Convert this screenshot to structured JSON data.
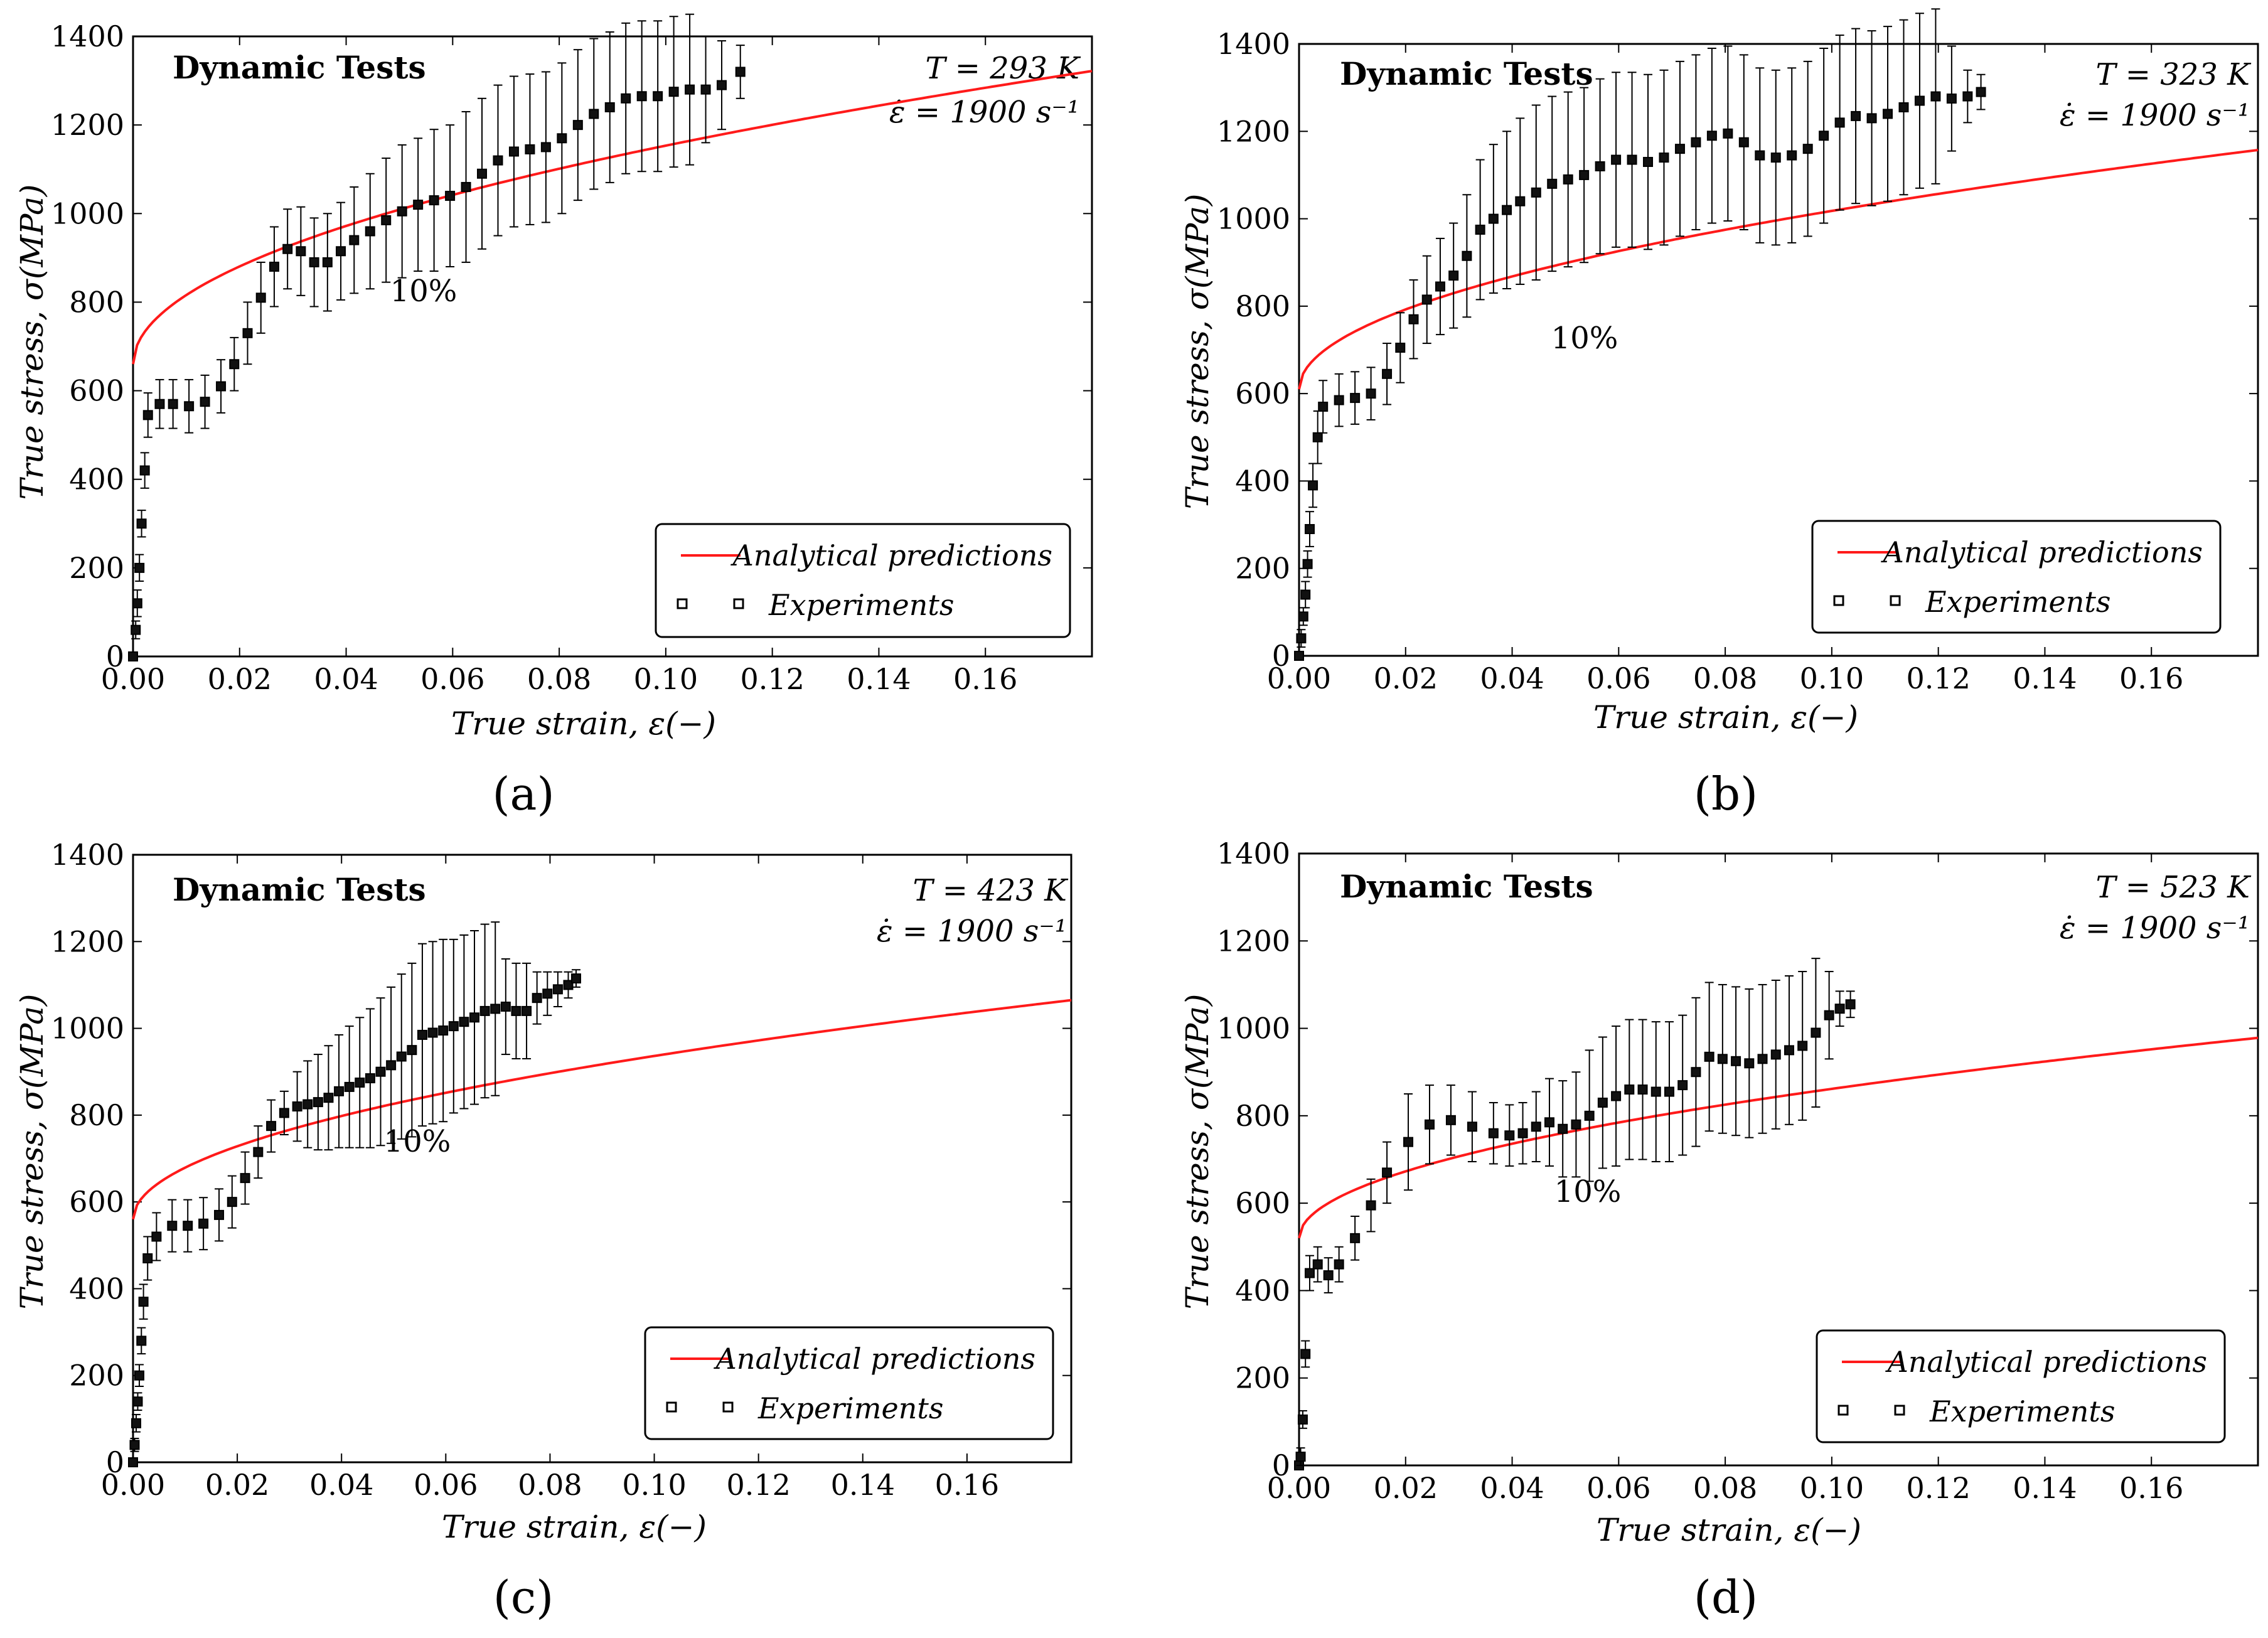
{
  "colors": {
    "prediction": "#ff1a1a",
    "experiment": "#000000",
    "axis": "#000000",
    "background": "#ffffff"
  },
  "chart_data": [
    {
      "panel": "a",
      "caption": "(a)",
      "type": "line+errorbar",
      "title": "Dynamic Tests",
      "temperature_label": "T = 293 K",
      "strain_rate_label": "ε̇ = 1900 s⁻¹",
      "annotation": "10%",
      "xlabel": "True strain, ε(−)",
      "ylabel": "True stress, σ(MPa)",
      "xlim": [
        0,
        0.18
      ],
      "ylim": [
        0,
        1400
      ],
      "xticks": [
        "0.00",
        "0.02",
        "0.04",
        "0.06",
        "0.08",
        "0.10",
        "0.12",
        "0.14",
        "0.16"
      ],
      "yticks": [
        "0",
        "200",
        "400",
        "600",
        "800",
        "1000",
        "1200",
        "1400"
      ],
      "legend": [
        "Analytical predictions",
        "Experiments"
      ],
      "legend_position": "lower-right",
      "prediction": {
        "y0": 660,
        "A": 1560,
        "n": 0.5
      },
      "experiments": {
        "x": [
          0,
          0.0005,
          0.0008,
          0.0012,
          0.0016,
          0.0022,
          0.0028,
          0.005,
          0.0075,
          0.0105,
          0.0135,
          0.0165,
          0.019,
          0.0215,
          0.024,
          0.0265,
          0.029,
          0.0315,
          0.034,
          0.0365,
          0.039,
          0.0415,
          0.0445,
          0.0475,
          0.0505,
          0.0535,
          0.0565,
          0.0595,
          0.0625,
          0.0655,
          0.0685,
          0.0715,
          0.0745,
          0.0775,
          0.0805,
          0.0835,
          0.0865,
          0.0895,
          0.0925,
          0.0955,
          0.0985,
          0.1015,
          0.1045,
          0.1075,
          0.1105,
          0.114
        ],
        "y": [
          0,
          60,
          120,
          200,
          300,
          420,
          545,
          570,
          570,
          565,
          575,
          610,
          660,
          730,
          810,
          880,
          920,
          915,
          890,
          890,
          915,
          940,
          960,
          985,
          1005,
          1020,
          1030,
          1040,
          1060,
          1090,
          1120,
          1140,
          1145,
          1150,
          1170,
          1200,
          1225,
          1240,
          1260,
          1265,
          1265,
          1275,
          1280,
          1280,
          1290,
          1320
        ],
        "err": [
          10,
          20,
          30,
          30,
          30,
          40,
          50,
          55,
          55,
          60,
          60,
          60,
          60,
          70,
          80,
          90,
          90,
          100,
          100,
          110,
          110,
          120,
          130,
          140,
          150,
          150,
          160,
          160,
          170,
          170,
          170,
          170,
          170,
          170,
          170,
          170,
          170,
          170,
          170,
          170,
          170,
          170,
          170,
          120,
          100,
          60
        ]
      }
    },
    {
      "panel": "b",
      "caption": "(b)",
      "type": "line+errorbar",
      "title": "Dynamic Tests",
      "temperature_label": "T = 323 K",
      "strain_rate_label": "ε̇ = 1900 s⁻¹",
      "annotation": "10%",
      "xlabel": "True strain, ε(−)",
      "ylabel": "True stress, σ(MPa)",
      "xlim": [
        0,
        0.18
      ],
      "ylim": [
        0,
        1400
      ],
      "xticks": [
        "0.00",
        "0.02",
        "0.04",
        "0.06",
        "0.08",
        "0.10",
        "0.12",
        "0.14",
        "0.16"
      ],
      "yticks": [
        "0",
        "200",
        "400",
        "600",
        "800",
        "1000",
        "1200",
        "1400"
      ],
      "legend": [
        "Analytical predictions",
        "Experiments"
      ],
      "legend_position": "lower-right",
      "prediction": {
        "y0": 610,
        "A": 1290,
        "n": 0.5
      },
      "experiments": {
        "x": [
          0,
          0.0004,
          0.0008,
          0.0012,
          0.0016,
          0.002,
          0.0026,
          0.0035,
          0.0045,
          0.0075,
          0.0105,
          0.0135,
          0.0165,
          0.019,
          0.0215,
          0.024,
          0.0265,
          0.029,
          0.0315,
          0.034,
          0.0365,
          0.039,
          0.0415,
          0.0445,
          0.0475,
          0.0505,
          0.0535,
          0.0565,
          0.0595,
          0.0625,
          0.0655,
          0.0685,
          0.0715,
          0.0745,
          0.0775,
          0.0805,
          0.0835,
          0.0865,
          0.0895,
          0.0925,
          0.0955,
          0.0985,
          0.1015,
          0.1045,
          0.1075,
          0.1105,
          0.1135,
          0.1165,
          0.1195,
          0.1225,
          0.1255,
          0.128
        ],
        "y": [
          0,
          40,
          90,
          140,
          210,
          290,
          390,
          500,
          570,
          585,
          590,
          600,
          645,
          705,
          770,
          815,
          845,
          870,
          915,
          975,
          1000,
          1020,
          1040,
          1060,
          1080,
          1090,
          1100,
          1120,
          1135,
          1135,
          1130,
          1140,
          1160,
          1175,
          1190,
          1195,
          1175,
          1145,
          1140,
          1145,
          1160,
          1190,
          1220,
          1235,
          1230,
          1240,
          1255,
          1270,
          1280,
          1275,
          1280,
          1290
        ],
        "err": [
          10,
          20,
          20,
          30,
          30,
          40,
          50,
          60,
          60,
          60,
          60,
          60,
          70,
          80,
          90,
          100,
          110,
          120,
          140,
          160,
          170,
          180,
          190,
          200,
          200,
          200,
          200,
          200,
          200,
          200,
          200,
          200,
          200,
          200,
          200,
          200,
          200,
          200,
          200,
          200,
          200,
          200,
          200,
          200,
          200,
          200,
          200,
          200,
          200,
          120,
          60,
          40
        ]
      }
    },
    {
      "panel": "c",
      "caption": "(c)",
      "type": "line+errorbar",
      "title": "Dynamic Tests",
      "temperature_label": "T = 423 K",
      "strain_rate_label": "ε̇ = 1900 s⁻¹",
      "annotation": "10%",
      "xlabel": "True strain, ε(−)",
      "ylabel": "True stress, σ(MPa)",
      "xlim": [
        0,
        0.18
      ],
      "ylim": [
        0,
        1400
      ],
      "xticks": [
        "0.00",
        "0.02",
        "0.04",
        "0.06",
        "0.08",
        "0.10",
        "0.12",
        "0.14",
        "0.16"
      ],
      "yticks": [
        "0",
        "200",
        "400",
        "600",
        "800",
        "1000",
        "1200",
        "1400"
      ],
      "legend": [
        "Analytical predictions",
        "Experiments"
      ],
      "legend_position": "lower-right",
      "prediction": {
        "y0": 560,
        "A": 1190,
        "n": 0.5
      },
      "experiments": {
        "x": [
          0,
          0.0003,
          0.0006,
          0.0009,
          0.0012,
          0.0016,
          0.002,
          0.0028,
          0.0045,
          0.0075,
          0.0105,
          0.0135,
          0.0165,
          0.019,
          0.0215,
          0.024,
          0.0265,
          0.029,
          0.0315,
          0.0335,
          0.0355,
          0.0375,
          0.0395,
          0.0415,
          0.0435,
          0.0455,
          0.0475,
          0.0495,
          0.0515,
          0.0535,
          0.0555,
          0.0575,
          0.0595,
          0.0615,
          0.0635,
          0.0655,
          0.0675,
          0.0695,
          0.0715,
          0.0735,
          0.0755,
          0.0775,
          0.0795,
          0.0815,
          0.0835,
          0.085
        ],
        "y": [
          0,
          40,
          90,
          140,
          200,
          280,
          370,
          470,
          520,
          545,
          545,
          550,
          570,
          600,
          655,
          715,
          775,
          805,
          820,
          825,
          830,
          840,
          855,
          865,
          875,
          885,
          900,
          915,
          935,
          950,
          985,
          990,
          995,
          1005,
          1015,
          1025,
          1040,
          1045,
          1050,
          1040,
          1040,
          1070,
          1080,
          1090,
          1100,
          1115
        ],
        "err": [
          10,
          15,
          20,
          20,
          25,
          30,
          40,
          50,
          55,
          60,
          60,
          60,
          60,
          60,
          60,
          60,
          60,
          50,
          80,
          100,
          110,
          120,
          130,
          140,
          150,
          160,
          170,
          180,
          190,
          200,
          210,
          210,
          210,
          200,
          200,
          200,
          200,
          200,
          110,
          110,
          110,
          60,
          50,
          40,
          30,
          20
        ]
      }
    },
    {
      "panel": "d",
      "caption": "(d)",
      "type": "line+errorbar",
      "title": "Dynamic Tests",
      "temperature_label": "T = 523 K",
      "strain_rate_label": "ε̇ = 1900 s⁻¹",
      "annotation": "10%",
      "xlabel": "True strain, ε(−)",
      "ylabel": "True stress, σ(MPa)",
      "xlim": [
        0,
        0.18
      ],
      "ylim": [
        0,
        1400
      ],
      "xticks": [
        "0.00",
        "0.02",
        "0.04",
        "0.06",
        "0.08",
        "0.10",
        "0.12",
        "0.14",
        "0.16"
      ],
      "yticks": [
        "0",
        "200",
        "400",
        "600",
        "800",
        "1000",
        "1200",
        "1400"
      ],
      "legend": [
        "Analytical predictions",
        "Experiments"
      ],
      "legend_position": "lower-right",
      "prediction": {
        "y0": 520,
        "A": 1080,
        "n": 0.5
      },
      "experiments": {
        "x": [
          0,
          0.0003,
          0.0007,
          0.0012,
          0.002,
          0.0035,
          0.0055,
          0.0075,
          0.0105,
          0.0135,
          0.0165,
          0.0205,
          0.0245,
          0.0285,
          0.0325,
          0.0365,
          0.0395,
          0.042,
          0.0445,
          0.047,
          0.0495,
          0.052,
          0.0545,
          0.057,
          0.0595,
          0.062,
          0.0645,
          0.067,
          0.0695,
          0.072,
          0.0745,
          0.077,
          0.0795,
          0.082,
          0.0845,
          0.087,
          0.0895,
          0.092,
          0.0945,
          0.097,
          0.0995,
          0.1015,
          0.1035
        ],
        "y": [
          0,
          20,
          105,
          255,
          440,
          460,
          435,
          460,
          520,
          595,
          670,
          740,
          780,
          790,
          775,
          760,
          755,
          760,
          775,
          785,
          770,
          780,
          800,
          830,
          845,
          860,
          860,
          855,
          855,
          870,
          900,
          935,
          930,
          925,
          920,
          930,
          940,
          950,
          960,
          990,
          1030,
          1045,
          1055
        ],
        "err": [
          10,
          20,
          20,
          30,
          40,
          40,
          40,
          40,
          50,
          60,
          70,
          110,
          90,
          80,
          80,
          70,
          70,
          70,
          80,
          100,
          110,
          120,
          150,
          150,
          160,
          160,
          160,
          160,
          160,
          160,
          170,
          170,
          170,
          170,
          170,
          170,
          170,
          170,
          170,
          170,
          100,
          40,
          30
        ]
      }
    }
  ]
}
